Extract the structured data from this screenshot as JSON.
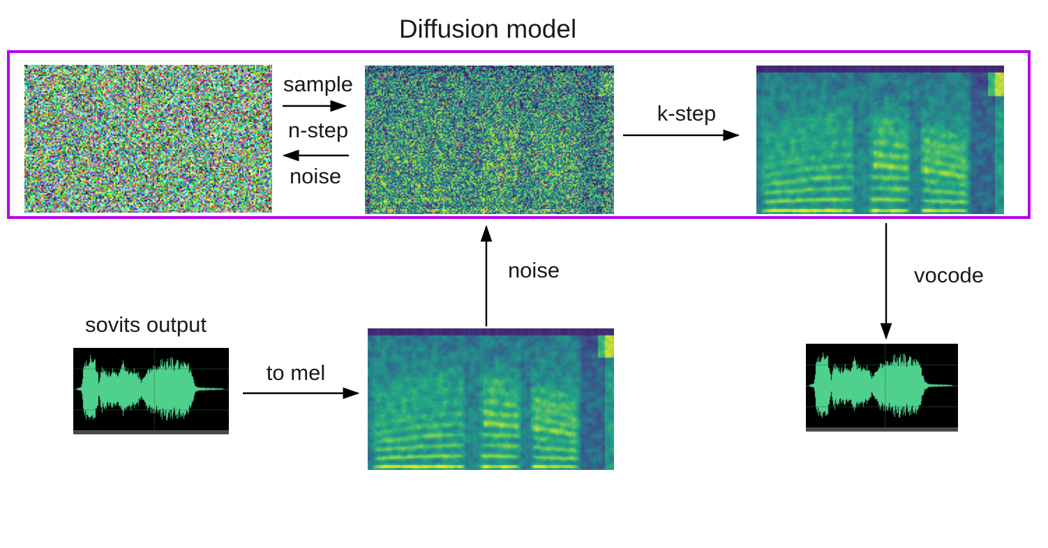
{
  "diagram": {
    "title": "Diffusion model",
    "labels": {
      "sample": "sample",
      "n_step": "n-step",
      "noise_return": "noise",
      "noise_up": "noise",
      "k_step": "k-step",
      "to_mel": "to mel",
      "vocode": "vocode",
      "sovits_output": "sovits output"
    },
    "images": {
      "gaussian_noise": {
        "kind": "rgb-noise",
        "description": "random RGB noise image"
      },
      "noisy_mel": {
        "kind": "mel-noisy",
        "description": "mel spectrogram with added gaussian noise"
      },
      "denoised_mel": {
        "kind": "mel",
        "description": "denoised mel spectrogram after k-step sampling"
      },
      "mel": {
        "kind": "mel",
        "description": "mel spectrogram of sovits output"
      },
      "waveform_in": {
        "kind": "waveform",
        "description": "sovits output waveform, green on black"
      },
      "waveform_out": {
        "kind": "waveform",
        "description": "vocoded output waveform, green on black"
      }
    },
    "colors": {
      "box_border": "#b800e8",
      "text": "#1a1a1a",
      "arrow": "#000000",
      "background": "#ffffff",
      "waveform_green": "#4fd18e",
      "waveform_bg": "#000000",
      "waveform_grid": "#1d5130",
      "scrollbar_gray": "#4a4a4a"
    }
  }
}
